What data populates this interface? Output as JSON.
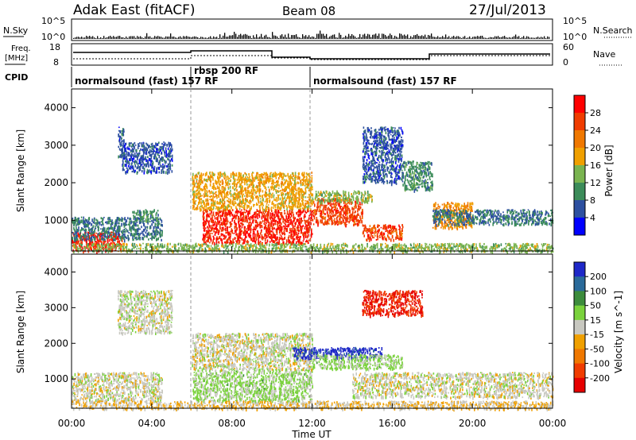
{
  "header": {
    "title": "Adak East (fitACF)",
    "beam": "Beam 08",
    "date": "27/Jul/2013"
  },
  "nsky_panel": {
    "left_label": "N.Sky",
    "left_ticks": [
      "10^5",
      "10^0"
    ],
    "right_label": "N.Search",
    "right_ticks": [
      "10^5",
      "10^0"
    ]
  },
  "freq_panel": {
    "left_label_1": "Freq.",
    "left_label_2": "[MHz]",
    "left_ticks": [
      "18",
      "8"
    ],
    "right_label": "Nave",
    "right_ticks": [
      "60",
      "0"
    ]
  },
  "cpid_panel": {
    "label": "CPID",
    "segments": [
      "normalsound (fast) 157 RF",
      "rbsp 200 RF",
      "normalsound (fast) 157 RF"
    ]
  },
  "time_axis": {
    "label": "Time UT",
    "ticks": [
      "00:00",
      "04:00",
      "08:00",
      "12:00",
      "16:00",
      "20:00",
      "00:00"
    ]
  },
  "colors": {
    "power": [
      "#0000ff",
      "#2d50a0",
      "#3c8c5a",
      "#7ab450",
      "#f0a000",
      "#f07800",
      "#f03c00",
      "#ff0000"
    ],
    "velocity": [
      "#1e28c8",
      "#2a6a9a",
      "#3c8c3c",
      "#7ad23c",
      "#c8c8c0",
      "#f0a000",
      "#f07800",
      "#f03c00",
      "#e60000"
    ]
  },
  "chart_data": [
    {
      "type": "heatmap",
      "title": "",
      "xlabel": "Time UT",
      "ylabel": "Slant Range [km]",
      "xlim": [
        0,
        24
      ],
      "ylim": [
        180,
        4500
      ],
      "yticks": [
        "1000",
        "2000",
        "3000",
        "4000"
      ],
      "colorbar": {
        "label": "Power [dB]",
        "ticks": [
          "28",
          "24",
          "20",
          "16",
          "12",
          "8",
          "4"
        ],
        "range": [
          0,
          32
        ]
      },
      "regions": [
        {
          "t0": 0.0,
          "t1": 2.5,
          "r0": 200,
          "r1": 700,
          "v": 28
        },
        {
          "t0": 0.0,
          "t1": 4.5,
          "r0": 500,
          "r1": 1100,
          "v": 8
        },
        {
          "t0": 2.3,
          "t1": 2.6,
          "r0": 2700,
          "r1": 3500,
          "v": 6
        },
        {
          "t0": 2.5,
          "t1": 5.0,
          "r0": 2300,
          "r1": 3100,
          "v": 6
        },
        {
          "t0": 3.0,
          "t1": 4.3,
          "r0": 1000,
          "r1": 1300,
          "v": 10
        },
        {
          "t0": 6.0,
          "t1": 12.0,
          "r0": 1300,
          "r1": 2300,
          "v": 18
        },
        {
          "t0": 6.5,
          "t1": 12.0,
          "r0": 400,
          "r1": 1300,
          "v": 28
        },
        {
          "t0": 12.0,
          "t1": 14.5,
          "r0": 900,
          "r1": 1600,
          "v": 26
        },
        {
          "t0": 12.0,
          "t1": 15.0,
          "r0": 1500,
          "r1": 1800,
          "v": 14
        },
        {
          "t0": 14.5,
          "t1": 16.5,
          "r0": 500,
          "r1": 900,
          "v": 26
        },
        {
          "t0": 14.5,
          "t1": 16.5,
          "r0": 2000,
          "r1": 3500,
          "v": 6
        },
        {
          "t0": 16.5,
          "t1": 18.0,
          "r0": 1800,
          "r1": 2600,
          "v": 10
        },
        {
          "t0": 18.0,
          "t1": 20.0,
          "r0": 800,
          "r1": 1500,
          "v": 20
        },
        {
          "t0": 18.0,
          "t1": 24.0,
          "r0": 900,
          "r1": 1300,
          "v": 8
        },
        {
          "t0": 0.0,
          "t1": 24.0,
          "r0": 180,
          "r1": 400,
          "v": 14
        }
      ]
    },
    {
      "type": "heatmap",
      "title": "",
      "xlabel": "Time UT",
      "ylabel": "Slant Range [km]",
      "xlim": [
        0,
        24
      ],
      "ylim": [
        180,
        4500
      ],
      "yticks": [
        "1000",
        "2000",
        "3000",
        "4000"
      ],
      "colorbar": {
        "label": "Velocity [m s^-1]",
        "ticks": [
          "200",
          "100",
          "50",
          "15",
          "-15",
          "-50",
          "-100",
          "-200"
        ],
        "range": [
          -250,
          250
        ]
      },
      "regions": [
        {
          "t0": 0.0,
          "t1": 4.5,
          "r0": 400,
          "r1": 1200,
          "v": 0
        },
        {
          "t0": 2.3,
          "t1": 5.0,
          "r0": 2300,
          "r1": 3500,
          "v": 5
        },
        {
          "t0": 6.0,
          "t1": 12.0,
          "r0": 400,
          "r1": 1300,
          "v": 40
        },
        {
          "t0": 6.0,
          "t1": 12.0,
          "r0": 1300,
          "r1": 2300,
          "v": 0
        },
        {
          "t0": 11.0,
          "t1": 15.5,
          "r0": 1600,
          "r1": 1900,
          "v": 220
        },
        {
          "t0": 12.0,
          "t1": 16.5,
          "r0": 1300,
          "r1": 1700,
          "v": 40
        },
        {
          "t0": 14.5,
          "t1": 17.5,
          "r0": 2800,
          "r1": 3500,
          "v": -200
        },
        {
          "t0": 14.0,
          "t1": 24.0,
          "r0": 500,
          "r1": 1200,
          "v": 0
        },
        {
          "t0": 0.0,
          "t1": 24.0,
          "r0": 180,
          "r1": 400,
          "v": -30
        }
      ]
    }
  ]
}
